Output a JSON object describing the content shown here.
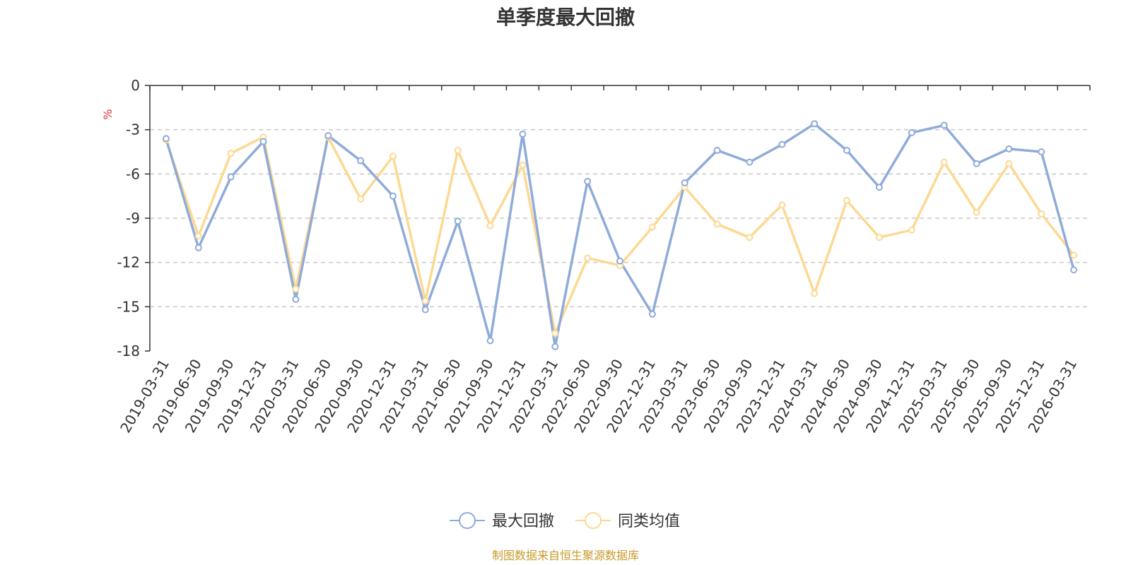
{
  "colors": {
    "series_1": "#8fabd9",
    "series_2": "#fcd992",
    "unit": "#e03030",
    "source": "#c89a2a",
    "grid": "#c8c8c8",
    "axis": "#333333"
  },
  "chart_data": {
    "type": "line",
    "title": "单季度最大回撤",
    "ylabel": "%",
    "ylim": [
      -18,
      0
    ],
    "yticks": [
      "0",
      "-3",
      "-6",
      "-9",
      "-12",
      "-15",
      "-18"
    ],
    "ytick_values": [
      0,
      -3,
      -6,
      -9,
      -12,
      -15,
      -18
    ],
    "grid": "horizontal dashed",
    "legend_position": "bottom-center",
    "categories": [
      "2019-03-31",
      "2019-06-30",
      "2019-09-30",
      "2019-12-31",
      "2020-03-31",
      "2020-06-30",
      "2020-09-30",
      "2020-12-31",
      "2021-03-31",
      "2021-06-30",
      "2021-09-30",
      "2021-12-31",
      "2022-03-31",
      "2022-06-30",
      "2022-09-30",
      "2022-12-31",
      "2023-03-31",
      "2023-06-30",
      "2023-09-30",
      "2023-12-31",
      "2024-03-31",
      "2024-06-30",
      "2024-09-30",
      "2024-12-31",
      "2025-03-31",
      "2025-06-30",
      "2025-09-30",
      "2025-12-31",
      "2026-03-31"
    ],
    "series": [
      {
        "name": "最大回撤",
        "values": [
          -3.6,
          -11.0,
          -6.2,
          -3.8,
          -14.5,
          -3.4,
          -5.1,
          -7.5,
          -15.2,
          -9.2,
          -17.3,
          -3.3,
          -17.7,
          -6.5,
          -11.9,
          -15.5,
          -6.6,
          -4.4,
          -5.2,
          -4.0,
          -2.6,
          -4.4,
          -6.9,
          -3.2,
          -2.7,
          -5.3,
          -4.3,
          -4.5,
          -12.5
        ]
      },
      {
        "name": "同类均值",
        "values": [
          -3.7,
          -10.2,
          -4.6,
          -3.5,
          -13.8,
          -3.5,
          -7.7,
          -4.8,
          -14.6,
          -4.4,
          -9.5,
          -5.4,
          -16.8,
          -11.7,
          -12.2,
          -9.6,
          -6.9,
          -9.4,
          -10.3,
          -8.1,
          -14.1,
          -7.8,
          -10.3,
          -9.8,
          -5.2,
          -8.6,
          -5.3,
          -8.7,
          -11.5
        ]
      }
    ]
  },
  "source": "制图数据来自恒生聚源数据库"
}
